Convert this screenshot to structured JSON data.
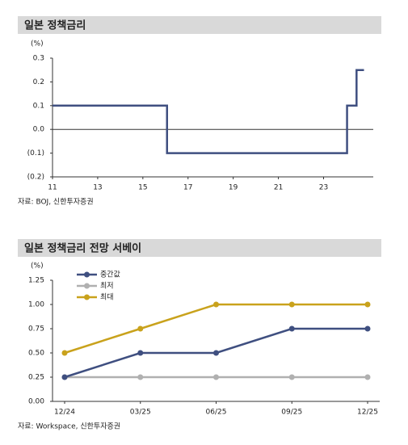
{
  "chart_data": [
    {
      "type": "line",
      "title": "일본 정책금리",
      "y_unit": "(%)",
      "source": "자료: BOJ, 신한투자증권",
      "x": [
        11,
        16.07,
        16.07,
        24.04,
        24.04,
        24.46,
        24.46,
        24.79
      ],
      "values": [
        0.1,
        0.1,
        -0.1,
        -0.1,
        0.1,
        0.1,
        0.25,
        0.25
      ],
      "color": "#3f4f80",
      "xlim": [
        11,
        25.2
      ],
      "xticks": [
        11,
        13,
        15,
        17,
        19,
        21,
        23
      ],
      "ylim": [
        -0.2,
        0.3
      ],
      "yticks": [
        {
          "value": -0.2,
          "label": "(0.2)"
        },
        {
          "value": -0.1,
          "label": "(0.1)"
        },
        {
          "value": 0,
          "label": "0.0"
        },
        0.1,
        0.2,
        0.3
      ]
    },
    {
      "type": "line",
      "title": "일본 정책금리 전망 서베이",
      "y_unit": "(%)",
      "source": "자료: Workspace, 신한투자증권",
      "categories": [
        "12/24",
        "03/25",
        "06/25",
        "09/25",
        "12/25"
      ],
      "series": [
        {
          "name": "중간값",
          "color": "#3f4f80",
          "values": [
            0.25,
            0.5,
            0.5,
            0.75,
            0.75
          ]
        },
        {
          "name": "최저",
          "color": "#b0b0b0",
          "values": [
            0.25,
            0.25,
            0.25,
            0.25,
            0.25
          ]
        },
        {
          "name": "최대",
          "color": "#c9a21c",
          "values": [
            0.5,
            0.75,
            1,
            1,
            1
          ]
        }
      ],
      "ylim": [
        0,
        1.25
      ],
      "yticks": [
        {
          "value": 0,
          "label": "0.00"
        },
        {
          "value": 0.25,
          "label": "0.25"
        },
        {
          "value": 0.5,
          "label": "0.50"
        },
        {
          "value": 0.75,
          "label": "0.75"
        },
        {
          "value": 1,
          "label": "1.00"
        },
        {
          "value": 1.25,
          "label": "1.25"
        }
      ]
    }
  ]
}
